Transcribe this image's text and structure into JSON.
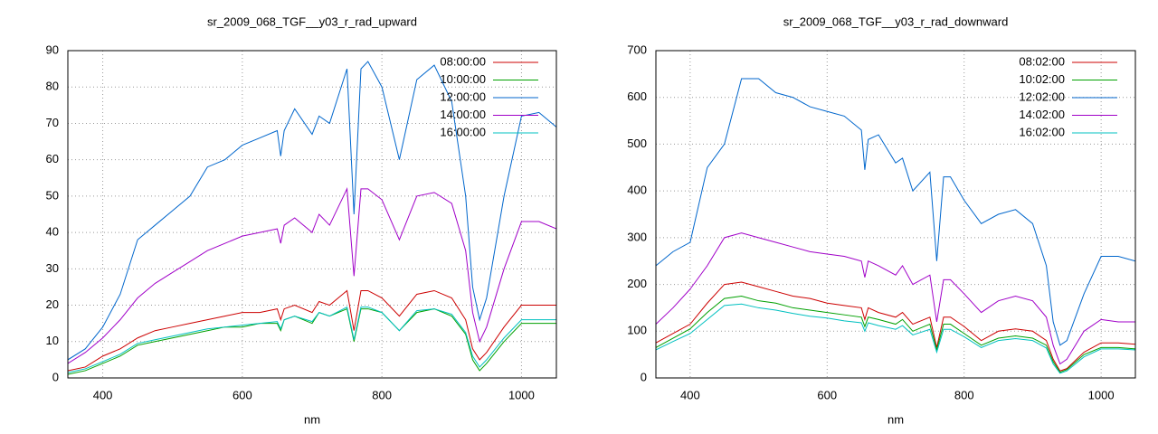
{
  "chart_data": [
    {
      "type": "line",
      "title": "sr_2009_068_TGF__y03_r_rad_upward",
      "x_label": "nm",
      "x": [
        350,
        375,
        400,
        425,
        450,
        475,
        500,
        525,
        550,
        575,
        600,
        625,
        650,
        655,
        660,
        675,
        700,
        710,
        725,
        750,
        760,
        770,
        780,
        800,
        825,
        850,
        875,
        900,
        920,
        930,
        940,
        950,
        975,
        1000,
        1025,
        1050
      ],
      "xlim": [
        350,
        1050
      ],
      "xticks": [
        400,
        600,
        800,
        1000
      ],
      "ylim": [
        0,
        90
      ],
      "yticks": [
        0,
        10,
        20,
        30,
        40,
        50,
        60,
        70,
        80,
        90
      ],
      "grid": true,
      "legend": "top-right",
      "series": [
        {
          "name": "08:00:00",
          "color": "#cc0000",
          "values": [
            2,
            3,
            6,
            8,
            11,
            13,
            14,
            15,
            16,
            17,
            18,
            18,
            19,
            16,
            19,
            20,
            18,
            21,
            20,
            24,
            13,
            24,
            24,
            22,
            17,
            23,
            24,
            22,
            16,
            8,
            5,
            7,
            14,
            20,
            20,
            20
          ]
        },
        {
          "name": "10:00:00",
          "color": "#00a000",
          "values": [
            1,
            2,
            4,
            6,
            9,
            10,
            11,
            12,
            13,
            14,
            14,
            15,
            15,
            13,
            16,
            17,
            15,
            18,
            17,
            19,
            10,
            19,
            19,
            18,
            13,
            18,
            19,
            17,
            12,
            5,
            2,
            4,
            10,
            15,
            15,
            15
          ]
        },
        {
          "name": "12:00:00",
          "color": "#0066cc",
          "values": [
            5,
            8,
            14,
            23,
            38,
            42,
            46,
            50,
            58,
            60,
            64,
            66,
            68,
            61,
            68,
            74,
            67,
            72,
            70,
            85,
            45,
            85,
            87,
            80,
            60,
            82,
            86,
            76,
            50,
            25,
            16,
            22,
            50,
            72,
            73,
            69
          ]
        },
        {
          "name": "14:00:00",
          "color": "#a000c8",
          "values": [
            4,
            7,
            11,
            16,
            22,
            26,
            29,
            32,
            35,
            37,
            39,
            40,
            41,
            37,
            42,
            44,
            40,
            45,
            42,
            52,
            28,
            52,
            52,
            49,
            38,
            50,
            51,
            48,
            35,
            18,
            10,
            14,
            30,
            43,
            43,
            41
          ]
        },
        {
          "name": "16:00:00",
          "color": "#00c0c0",
          "values": [
            1.5,
            2.5,
            4.5,
            6.5,
            9.5,
            10.5,
            11.5,
            12.5,
            13.5,
            14,
            14.5,
            15,
            15.5,
            13.5,
            16,
            17,
            15.5,
            18,
            17,
            19.5,
            10.5,
            19.5,
            19.5,
            18,
            13,
            18.5,
            19,
            17.5,
            12.5,
            6,
            3,
            5,
            11,
            16,
            16,
            16
          ]
        }
      ]
    },
    {
      "type": "line",
      "title": "sr_2009_068_TGF__y03_r_rad_downward",
      "x_label": "nm",
      "x": [
        350,
        375,
        400,
        425,
        450,
        475,
        500,
        525,
        550,
        575,
        600,
        625,
        650,
        655,
        660,
        675,
        700,
        710,
        725,
        750,
        760,
        770,
        780,
        800,
        825,
        850,
        875,
        900,
        920,
        930,
        940,
        950,
        975,
        1000,
        1025,
        1050
      ],
      "xlim": [
        350,
        1050
      ],
      "xticks": [
        400,
        600,
        800,
        1000
      ],
      "ylim": [
        0,
        700
      ],
      "yticks": [
        0,
        100,
        200,
        300,
        400,
        500,
        600,
        700
      ],
      "grid": true,
      "legend": "top-right",
      "series": [
        {
          "name": "08:02:00",
          "color": "#cc0000",
          "values": [
            75,
            95,
            115,
            160,
            200,
            205,
            195,
            185,
            175,
            170,
            160,
            155,
            150,
            125,
            150,
            140,
            130,
            140,
            115,
            130,
            65,
            130,
            130,
            110,
            80,
            100,
            105,
            100,
            80,
            40,
            15,
            20,
            55,
            75,
            75,
            72
          ]
        },
        {
          "name": "10:02:00",
          "color": "#00a000",
          "values": [
            65,
            85,
            105,
            140,
            170,
            175,
            165,
            160,
            150,
            145,
            140,
            135,
            130,
            110,
            130,
            125,
            115,
            125,
            100,
            115,
            60,
            115,
            115,
            95,
            70,
            85,
            90,
            85,
            70,
            35,
            12,
            18,
            50,
            65,
            65,
            62
          ]
        },
        {
          "name": "12:02:00",
          "color": "#0066cc",
          "values": [
            240,
            270,
            290,
            450,
            500,
            640,
            640,
            610,
            600,
            580,
            570,
            560,
            530,
            445,
            510,
            520,
            460,
            470,
            400,
            440,
            250,
            430,
            430,
            380,
            330,
            350,
            360,
            330,
            240,
            120,
            70,
            80,
            180,
            260,
            260,
            250
          ]
        },
        {
          "name": "14:02:00",
          "color": "#a000c8",
          "values": [
            115,
            150,
            190,
            240,
            300,
            310,
            300,
            290,
            280,
            270,
            265,
            260,
            250,
            215,
            250,
            240,
            220,
            240,
            200,
            220,
            120,
            210,
            210,
            180,
            140,
            165,
            175,
            165,
            130,
            70,
            30,
            40,
            100,
            125,
            120,
            120
          ]
        },
        {
          "name": "16:02:00",
          "color": "#00c0c0",
          "values": [
            60,
            78,
            95,
            125,
            155,
            158,
            150,
            145,
            138,
            132,
            128,
            122,
            118,
            100,
            118,
            112,
            104,
            112,
            92,
            104,
            55,
            104,
            104,
            88,
            65,
            80,
            84,
            80,
            64,
            30,
            10,
            15,
            45,
            62,
            62,
            60
          ]
        }
      ]
    }
  ]
}
